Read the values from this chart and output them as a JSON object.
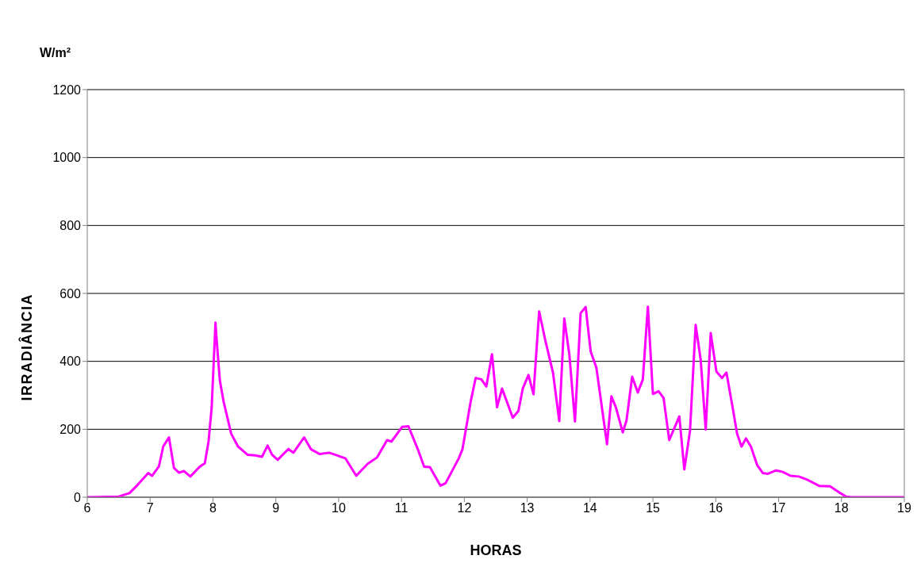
{
  "chart_data": {
    "type": "line",
    "xlabel": "HORAS",
    "ylabel": "IRRADIÂNCIA",
    "annotations": [
      "W/m²"
    ],
    "x": [
      6.0,
      6.5,
      6.67,
      6.8,
      6.97,
      7.03,
      7.14,
      7.21,
      7.3,
      7.38,
      7.46,
      7.54,
      7.64,
      7.79,
      7.87,
      7.93,
      7.98,
      8.04,
      8.06,
      8.11,
      8.17,
      8.29,
      8.4,
      8.55,
      8.67,
      8.78,
      8.87,
      8.94,
      9.03,
      9.2,
      9.28,
      9.45,
      9.56,
      9.7,
      9.85,
      9.98,
      10.11,
      10.28,
      10.46,
      10.61,
      10.77,
      10.84,
      11.01,
      11.11,
      11.26,
      11.36,
      11.45,
      11.53,
      11.62,
      11.7,
      11.81,
      11.91,
      11.97,
      12.1,
      12.18,
      12.27,
      12.35,
      12.44,
      12.52,
      12.6,
      12.77,
      12.86,
      12.93,
      13.02,
      13.1,
      13.19,
      13.29,
      13.41,
      13.51,
      13.59,
      13.67,
      13.76,
      13.85,
      13.93,
      14.01,
      14.1,
      14.27,
      14.34,
      14.41,
      14.52,
      14.58,
      14.67,
      14.76,
      14.84,
      14.92,
      15.0,
      15.09,
      15.17,
      15.26,
      15.42,
      15.5,
      15.59,
      15.68,
      15.76,
      15.84,
      15.92,
      16.01,
      16.1,
      16.17,
      16.26,
      16.34,
      16.41,
      16.48,
      16.56,
      16.66,
      16.75,
      16.83,
      16.96,
      17.06,
      17.19,
      17.32,
      17.44,
      17.65,
      17.82,
      17.95,
      18.07,
      18.16,
      19.0
    ],
    "series": [
      {
        "color": "#ff00ff",
        "values": [
          0,
          2,
          12,
          36,
          71,
          63,
          91,
          150,
          176,
          86,
          72,
          77,
          61,
          90,
          100,
          164,
          265,
          514,
          460,
          343,
          281,
          187,
          149,
          125,
          123,
          119,
          152,
          125,
          110,
          142,
          131,
          176,
          141,
          127,
          131,
          123,
          114,
          63,
          98,
          117,
          168,
          164,
          207,
          209,
          141,
          90,
          89,
          63,
          34,
          41,
          79,
          114,
          141,
          281,
          351,
          347,
          326,
          421,
          265,
          320,
          234,
          254,
          320,
          360,
          303,
          547,
          460,
          367,
          224,
          526,
          421,
          223,
          542,
          560,
          429,
          382,
          156,
          297,
          265,
          191,
          226,
          355,
          308,
          347,
          561,
          304,
          312,
          292,
          168,
          238,
          82,
          195,
          507,
          405,
          199,
          483,
          370,
          351,
          367,
          273,
          187,
          149,
          173,
          149,
          94,
          71,
          69,
          79,
          75,
          63,
          61,
          53,
          33,
          32,
          16,
          2,
          0,
          0
        ]
      }
    ],
    "xlim": [
      6,
      19
    ],
    "xticks": [
      6,
      7,
      8,
      9,
      10,
      11,
      12,
      13,
      14,
      15,
      16,
      17,
      18,
      19
    ],
    "ylim": [
      0,
      1200
    ],
    "yticks": [
      0,
      200,
      400,
      600,
      800,
      1000,
      1200
    ],
    "grid": "y",
    "legend": false,
    "marker": "none",
    "line_style": "solid"
  }
}
